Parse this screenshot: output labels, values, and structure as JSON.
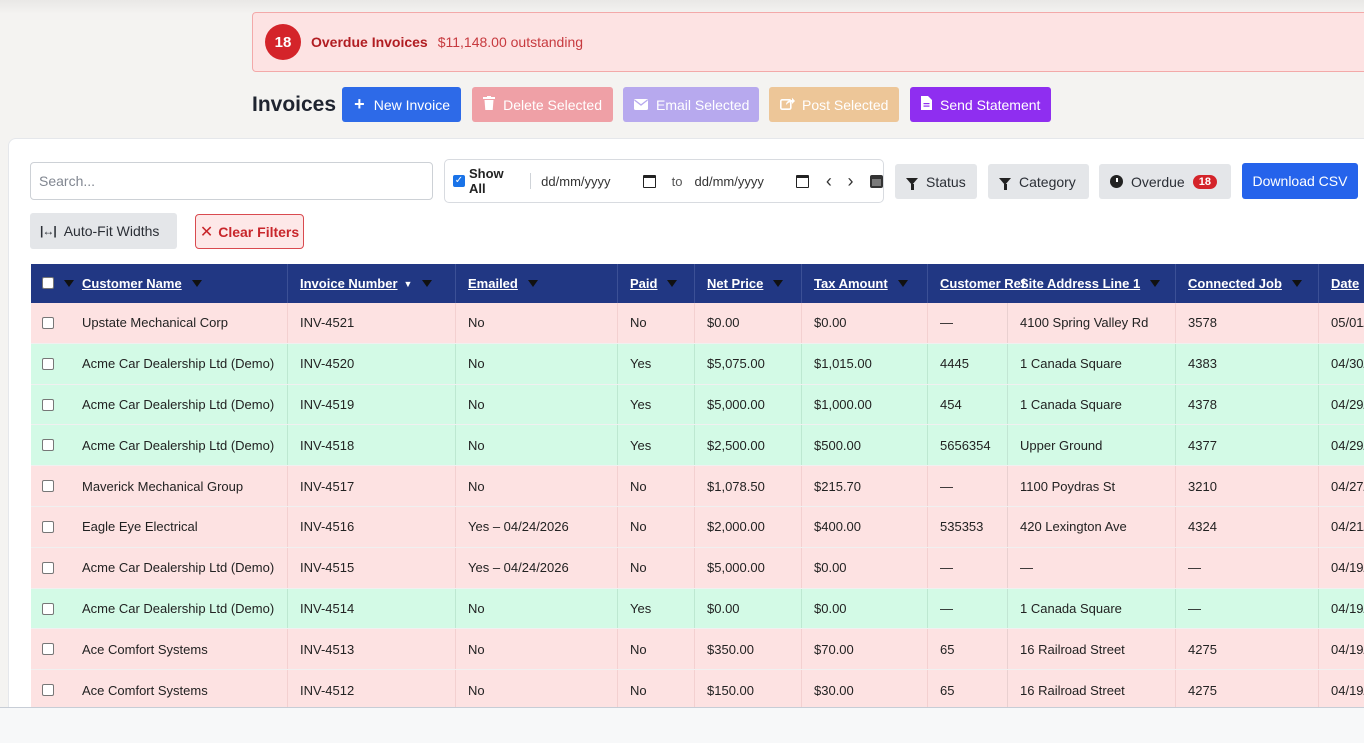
{
  "banner": {
    "count": "18",
    "title": "Overdue Invoices",
    "amount": "$11,148.00 outstanding"
  },
  "header": {
    "title": "Invoices",
    "new_invoice": "New Invoice",
    "delete_selected": "Delete Selected",
    "email_selected": "Email Selected",
    "post_selected": "Post Selected",
    "send_statement": "Send Statement"
  },
  "filters": {
    "search_placeholder": "Search...",
    "show_all": "Show All",
    "date_from": "dd/mm/yyyy",
    "date_to_label": "to",
    "date_to": "dd/mm/yyyy",
    "status": "Status",
    "category": "Category",
    "overdue": "Overdue",
    "overdue_count": "18",
    "download_csv": "Download CSV",
    "auto_fit": "Auto-Fit Widths",
    "clear_filters": "Clear Filters"
  },
  "table": {
    "columns": [
      "Customer Name",
      "Invoice Number",
      "Emailed",
      "Paid",
      "Net Price",
      "Tax Amount",
      "Customer Ref",
      "Site Address Line 1",
      "Connected Job",
      "Date"
    ],
    "rows": [
      {
        "status": "unpaid",
        "cells": [
          "Upstate Mechanical Corp",
          "INV-4521",
          "No",
          "No",
          "$0.00",
          "$0.00",
          "—",
          "4100 Spring Valley Rd",
          "3578",
          "05/01/"
        ]
      },
      {
        "status": "paid",
        "cells": [
          "Acme Car Dealership Ltd (Demo)",
          "INV-4520",
          "No",
          "Yes",
          "$5,075.00",
          "$1,015.00",
          "4445",
          "1 Canada Square",
          "4383",
          "04/30/"
        ]
      },
      {
        "status": "paid",
        "cells": [
          "Acme Car Dealership Ltd (Demo)",
          "INV-4519",
          "No",
          "Yes",
          "$5,000.00",
          "$1,000.00",
          "454",
          "1 Canada Square",
          "4378",
          "04/29/"
        ]
      },
      {
        "status": "paid",
        "cells": [
          "Acme Car Dealership Ltd (Demo)",
          "INV-4518",
          "No",
          "Yes",
          "$2,500.00",
          "$500.00",
          "5656354",
          "Upper Ground",
          "4377",
          "04/29/"
        ]
      },
      {
        "status": "unpaid",
        "cells": [
          "Maverick Mechanical Group",
          "INV-4517",
          "No",
          "No",
          "$1,078.50",
          "$215.70",
          "—",
          "1100 Poydras St",
          "3210",
          "04/27/"
        ]
      },
      {
        "status": "unpaid",
        "cells": [
          "Eagle Eye Electrical",
          "INV-4516",
          "Yes – 04/24/2026",
          "No",
          "$2,000.00",
          "$400.00",
          "535353",
          "420 Lexington Ave",
          "4324",
          "04/21/"
        ]
      },
      {
        "status": "unpaid",
        "cells": [
          "Acme Car Dealership Ltd (Demo)",
          "INV-4515",
          "Yes – 04/24/2026",
          "No",
          "$5,000.00",
          "$0.00",
          "—",
          "—",
          "—",
          "04/19/"
        ]
      },
      {
        "status": "paid",
        "cells": [
          "Acme Car Dealership Ltd (Demo)",
          "INV-4514",
          "No",
          "Yes",
          "$0.00",
          "$0.00",
          "—",
          "1 Canada Square",
          "—",
          "04/19/"
        ]
      },
      {
        "status": "unpaid",
        "cells": [
          "Ace Comfort Systems",
          "INV-4513",
          "No",
          "No",
          "$350.00",
          "$70.00",
          "65",
          "16 Railroad Street",
          "4275",
          "04/19/"
        ]
      },
      {
        "status": "unpaid",
        "cells": [
          "Ace Comfort Systems",
          "INV-4512",
          "No",
          "No",
          "$150.00",
          "$30.00",
          "65",
          "16 Railroad Street",
          "4275",
          "04/19/"
        ]
      }
    ]
  },
  "colors": {
    "unpaid_row": "#fde2e2",
    "paid_row": "#d3fae6",
    "header": "#213783",
    "accent": "#2d6ae8"
  }
}
